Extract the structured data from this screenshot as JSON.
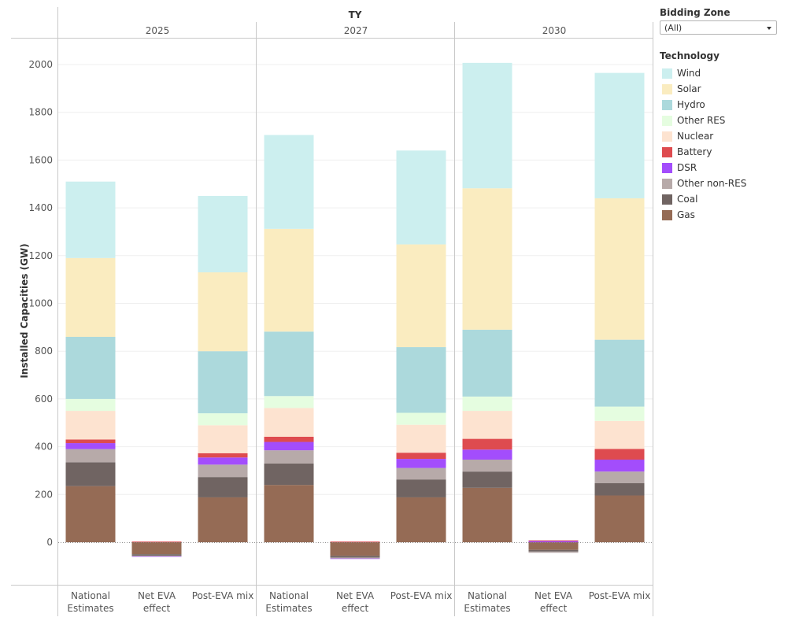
{
  "header": {
    "facet_title": "TY"
  },
  "filters": {
    "zone_title": "Bidding Zone",
    "zone_value": "(All)"
  },
  "legend_title": "Technology",
  "legend": [
    {
      "name": "Wind",
      "color": "#ccefef"
    },
    {
      "name": "Solar",
      "color": "#faecc0"
    },
    {
      "name": "Hydro",
      "color": "#acd9dc"
    },
    {
      "name": "Other RES",
      "color": "#e5fde0"
    },
    {
      "name": "Nuclear",
      "color": "#fde3d0"
    },
    {
      "name": "Battery",
      "color": "#de4b4f"
    },
    {
      "name": "DSR",
      "color": "#a34dfc"
    },
    {
      "name": "Other non-RES",
      "color": "#b7aaa9"
    },
    {
      "name": "Coal",
      "color": "#706462"
    },
    {
      "name": "Gas",
      "color": "#956b55"
    }
  ],
  "chart_data": {
    "type": "bar",
    "stacked": true,
    "ylabel": "Installed Capacities (GW)",
    "ylim": [
      -100,
      2100
    ],
    "yticks": [
      0,
      200,
      400,
      600,
      800,
      1000,
      1200,
      1400,
      1600,
      1800,
      2000
    ],
    "facet_title": "TY",
    "facets": [
      "2025",
      "2027",
      "2030"
    ],
    "categories": [
      [
        "National",
        "Estimates"
      ],
      [
        "Net EVA",
        "effect"
      ],
      [
        "Post-EVA mix"
      ]
    ],
    "stack_order": [
      "Gas",
      "Coal",
      "Other non-RES",
      "DSR",
      "Battery",
      "Nuclear",
      "Other RES",
      "Hydro",
      "Solar",
      "Wind"
    ],
    "bars": [
      {
        "facet": "2025",
        "category": 0,
        "segments": {
          "Gas": 235,
          "Coal": 100,
          "Other non-RES": 55,
          "DSR": 25,
          "Battery": 15,
          "Nuclear": 120,
          "Other RES": 50,
          "Hydro": 260,
          "Solar": 330,
          "Wind": 320
        }
      },
      {
        "facet": "2025",
        "category": 1,
        "segments": {
          "Gas": -50,
          "Coal": -6,
          "Other non-RES": -3,
          "DSR": -1,
          "Battery": 3
        }
      },
      {
        "facet": "2025",
        "category": 2,
        "segments": {
          "Gas": 188,
          "Coal": 85,
          "Other non-RES": 52,
          "DSR": 30,
          "Battery": 18,
          "Nuclear": 117,
          "Other RES": 50,
          "Hydro": 260,
          "Solar": 330,
          "Wind": 320
        }
      },
      {
        "facet": "2027",
        "category": 0,
        "segments": {
          "Gas": 240,
          "Coal": 90,
          "Other non-RES": 55,
          "DSR": 35,
          "Battery": 22,
          "Nuclear": 120,
          "Other RES": 50,
          "Hydro": 270,
          "Solar": 430,
          "Wind": 393
        }
      },
      {
        "facet": "2027",
        "category": 1,
        "segments": {
          "Gas": -57,
          "Coal": -7,
          "Other non-RES": -4,
          "DSR": -1,
          "Battery": 3
        }
      },
      {
        "facet": "2027",
        "category": 2,
        "segments": {
          "Gas": 188,
          "Coal": 75,
          "Other non-RES": 48,
          "DSR": 38,
          "Battery": 26,
          "Nuclear": 117,
          "Other RES": 50,
          "Hydro": 275,
          "Solar": 430,
          "Wind": 393
        }
      },
      {
        "facet": "2030",
        "category": 0,
        "segments": {
          "Gas": 228,
          "Coal": 68,
          "Other non-RES": 50,
          "DSR": 42,
          "Battery": 45,
          "Nuclear": 117,
          "Other RES": 60,
          "Hydro": 280,
          "Solar": 592,
          "Wind": 525
        }
      },
      {
        "facet": "2030",
        "category": 1,
        "segments": {
          "Gas": -32,
          "Coal": -7,
          "Other non-RES": -5,
          "DSR": 5,
          "Battery": 3
        }
      },
      {
        "facet": "2030",
        "category": 2,
        "segments": {
          "Gas": 196,
          "Coal": 52,
          "Other non-RES": 48,
          "DSR": 50,
          "Battery": 45,
          "Nuclear": 117,
          "Other RES": 60,
          "Hydro": 280,
          "Solar": 592,
          "Wind": 525
        }
      }
    ]
  }
}
